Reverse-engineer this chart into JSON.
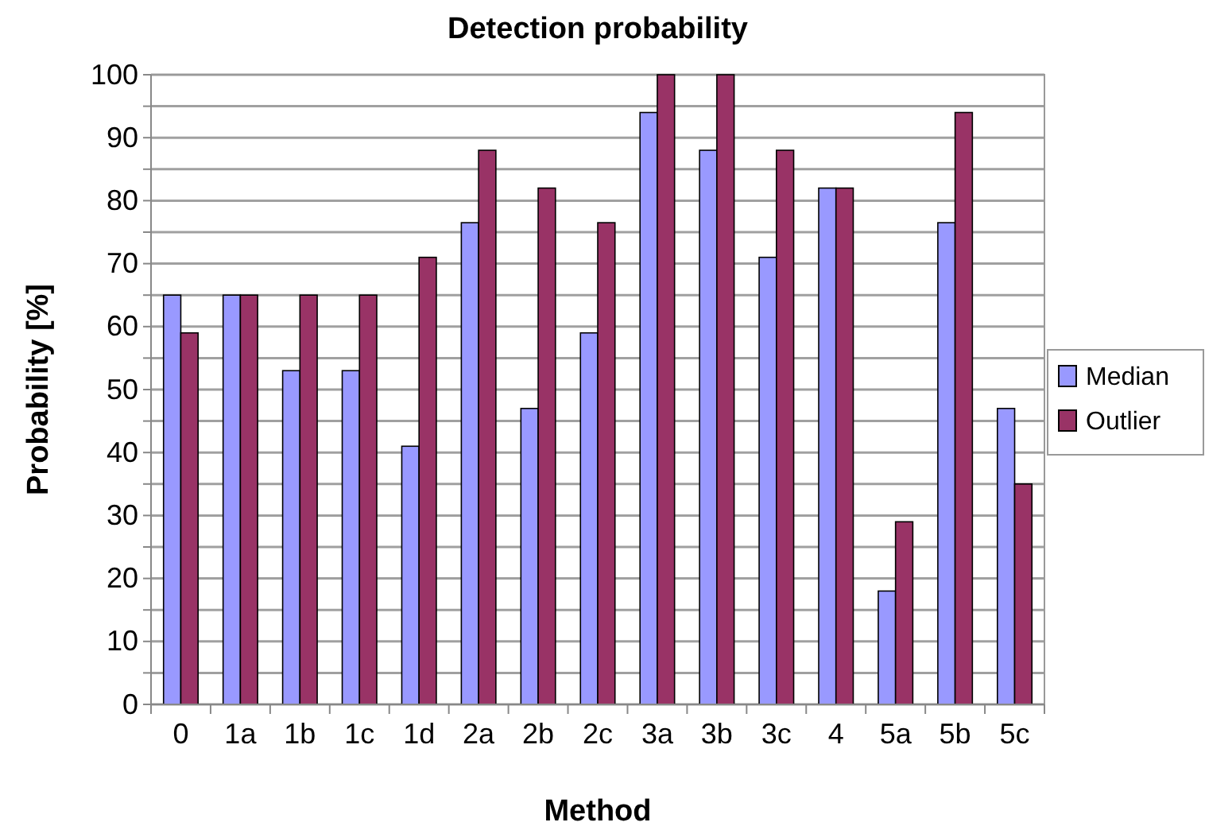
{
  "chart_data": {
    "type": "bar",
    "title": "Detection probability",
    "xlabel": "Method",
    "ylabel": "Probability [%]",
    "categories": [
      "0",
      "1a",
      "1b",
      "1c",
      "1d",
      "2a",
      "2b",
      "2c",
      "3a",
      "3b",
      "3c",
      "4",
      "5a",
      "5b",
      "5c"
    ],
    "series": [
      {
        "name": "Median",
        "color": "#9999ff",
        "values": [
          65,
          65,
          53,
          53,
          41,
          76.5,
          47,
          59,
          94,
          88,
          71,
          82,
          18,
          76.5,
          47
        ]
      },
      {
        "name": "Outlier",
        "color": "#993366",
        "values": [
          59,
          65,
          65,
          65,
          71,
          88,
          82,
          76.5,
          100,
          100,
          88,
          82,
          29,
          94,
          35
        ]
      }
    ],
    "ylim": [
      0,
      100
    ],
    "yticks": [
      0,
      {
        "value": 5,
        "label": null
      },
      10,
      {
        "value": 15,
        "label": null
      },
      20,
      {
        "value": 25,
        "label": null
      },
      30,
      {
        "value": 35,
        "label": null
      },
      40,
      {
        "value": 45,
        "label": null
      },
      50,
      {
        "value": 55,
        "label": null
      },
      60,
      {
        "value": 65,
        "label": null
      },
      70,
      {
        "value": 75,
        "label": null
      },
      80,
      {
        "value": 85,
        "label": null
      },
      90,
      {
        "value": 95,
        "label": null
      },
      100
    ],
    "grid": "y",
    "legend": "right"
  }
}
